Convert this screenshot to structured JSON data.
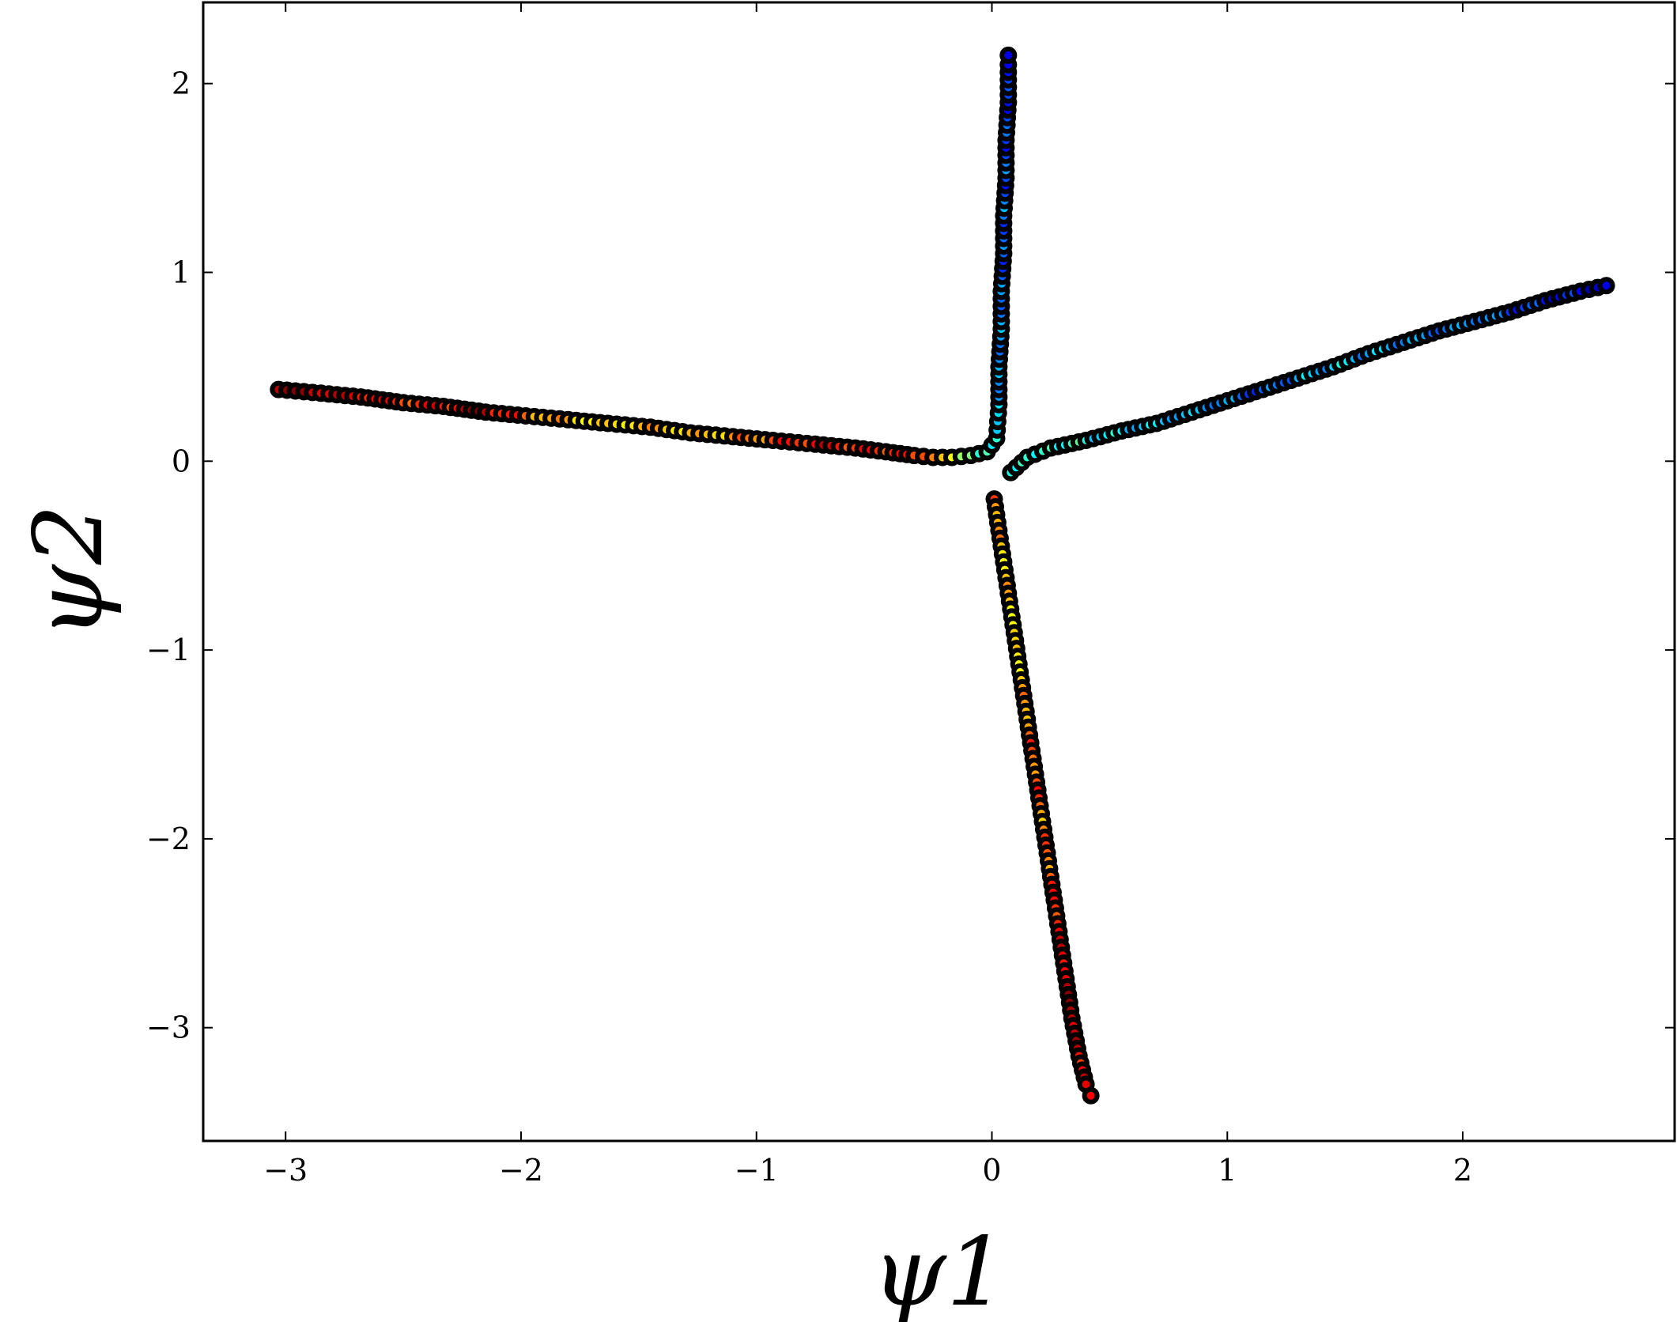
{
  "chart_data": {
    "type": "scatter",
    "title": "",
    "xlabel": "ψ1",
    "ylabel": "ψ2",
    "xlim": [
      -3.35,
      2.9
    ],
    "ylim": [
      -3.6,
      2.43
    ],
    "xticks": [
      -3,
      -2,
      -1,
      0,
      1,
      2
    ],
    "yticks": [
      -3,
      -2,
      -1,
      0,
      1,
      2
    ],
    "xtick_labels": [
      "−3",
      "−2",
      "−1",
      "0",
      "1",
      "2"
    ],
    "ytick_labels": [
      "−3",
      "−2",
      "−1",
      "0",
      "1",
      "2"
    ],
    "grid": false,
    "legend": null,
    "colormap": "jet",
    "marker_edge_color": "#000000",
    "series": [
      {
        "points": [
          [
            -3.03,
            0.38,
            0.95
          ],
          [
            -2.85,
            0.36,
            0.9
          ],
          [
            -2.68,
            0.34,
            0.85
          ],
          [
            -2.5,
            0.31,
            0.8
          ],
          [
            -2.33,
            0.29,
            0.85
          ],
          [
            -2.15,
            0.26,
            0.95
          ],
          [
            -1.98,
            0.24,
            0.78
          ],
          [
            -1.8,
            0.22,
            0.72
          ],
          [
            -1.63,
            0.2,
            0.68
          ],
          [
            -1.45,
            0.18,
            0.75
          ],
          [
            -1.28,
            0.15,
            0.7
          ],
          [
            -1.1,
            0.13,
            0.74
          ],
          [
            -0.93,
            0.11,
            0.8
          ],
          [
            -0.75,
            0.09,
            0.88
          ],
          [
            -0.58,
            0.07,
            0.82
          ],
          [
            -0.45,
            0.05,
            0.78
          ],
          [
            -0.33,
            0.03,
            0.8
          ],
          [
            -0.25,
            0.02,
            0.75
          ],
          [
            -0.17,
            0.02,
            0.62
          ],
          [
            -0.09,
            0.03,
            0.5
          ],
          [
            -0.02,
            0.05,
            0.45
          ],
          [
            0.02,
            0.12,
            0.42
          ],
          [
            0.03,
            0.3,
            0.35
          ],
          [
            0.03,
            0.5,
            0.3
          ],
          [
            0.04,
            0.7,
            0.32
          ],
          [
            0.04,
            0.9,
            0.28
          ],
          [
            0.05,
            1.1,
            0.22
          ],
          [
            0.05,
            1.3,
            0.25
          ],
          [
            0.06,
            1.5,
            0.2
          ],
          [
            0.06,
            1.7,
            0.18
          ],
          [
            0.07,
            1.9,
            0.14
          ],
          [
            0.07,
            2.1,
            0.12
          ],
          [
            0.07,
            2.15,
            0.1
          ],
          [
            0.08,
            -0.06,
            0.4
          ],
          [
            0.15,
            0.02,
            0.42
          ],
          [
            0.25,
            0.07,
            0.45
          ],
          [
            0.4,
            0.11,
            0.4
          ],
          [
            0.55,
            0.16,
            0.38
          ],
          [
            0.7,
            0.2,
            0.36
          ],
          [
            0.85,
            0.26,
            0.35
          ],
          [
            1.0,
            0.32,
            0.3
          ],
          [
            1.15,
            0.38,
            0.22
          ],
          [
            1.3,
            0.44,
            0.3
          ],
          [
            1.45,
            0.5,
            0.33
          ],
          [
            1.6,
            0.57,
            0.28
          ],
          [
            1.75,
            0.63,
            0.25
          ],
          [
            1.9,
            0.69,
            0.2
          ],
          [
            2.05,
            0.74,
            0.24
          ],
          [
            2.2,
            0.79,
            0.18
          ],
          [
            2.35,
            0.85,
            0.14
          ],
          [
            2.5,
            0.9,
            0.12
          ],
          [
            2.61,
            0.93,
            0.1
          ],
          [
            0.01,
            -0.2,
            0.82
          ],
          [
            0.04,
            -0.45,
            0.68
          ],
          [
            0.07,
            -0.7,
            0.72
          ],
          [
            0.1,
            -0.95,
            0.66
          ],
          [
            0.13,
            -1.2,
            0.72
          ],
          [
            0.16,
            -1.45,
            0.78
          ],
          [
            0.19,
            -1.7,
            0.8
          ],
          [
            0.22,
            -1.95,
            0.74
          ],
          [
            0.25,
            -2.2,
            0.78
          ],
          [
            0.28,
            -2.45,
            0.84
          ],
          [
            0.31,
            -2.7,
            0.88
          ],
          [
            0.34,
            -2.95,
            0.95
          ],
          [
            0.37,
            -3.15,
            0.86
          ],
          [
            0.4,
            -3.3,
            0.9
          ],
          [
            0.42,
            -3.36,
            0.88
          ]
        ]
      }
    ]
  }
}
